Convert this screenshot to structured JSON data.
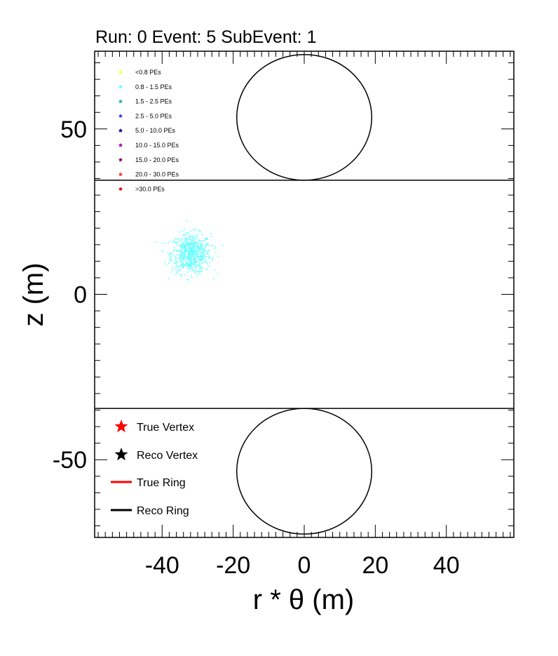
{
  "title": "Run: 0  Event: 5  SubEvent: 1",
  "chart_data": {
    "type": "scatter",
    "xlabel": "r * θ (m)",
    "ylabel": "z (m)",
    "xlim": [
      -59,
      59
    ],
    "ylim": [
      -73.5,
      73.5
    ],
    "x_ticks": [
      {
        "value": -40,
        "label": "-40"
      },
      {
        "value": -20,
        "label": "-20"
      },
      {
        "value": 0,
        "label": "0"
      },
      {
        "value": 20,
        "label": "20"
      },
      {
        "value": 40,
        "label": "40"
      }
    ],
    "y_ticks": [
      {
        "value": 50,
        "label": "50"
      },
      {
        "value": 0,
        "label": "0"
      },
      {
        "value": -50,
        "label": "-50"
      }
    ],
    "grid": false,
    "detector": {
      "barrel_top_z": 34.5,
      "barrel_bottom_z": -34.5,
      "cap_radius": 19,
      "top_cap_center": [
        0,
        53.5
      ],
      "bottom_cap_center": [
        0,
        -53.5
      ]
    },
    "hit_cluster": {
      "pe_bin": "0.8 - 1.5 PEs",
      "color": "#66ffff",
      "center": [
        -32,
        12.5
      ],
      "spread": [
        2.8,
        3.0
      ],
      "x_range": [
        -42,
        -23
      ],
      "y_range": [
        3.5,
        22.5
      ]
    },
    "pe_legend": [
      {
        "label": "<0.8 PEs",
        "color": "#ffff33"
      },
      {
        "label": "0.8 - 1.5 PEs",
        "color": "#66ffff"
      },
      {
        "label": "1.5 - 2.5 PEs",
        "color": "#20b2aa"
      },
      {
        "label": "2.5 - 5.0 PEs",
        "color": "#3333ff"
      },
      {
        "label": "5.0 - 10.0 PEs",
        "color": "#000099"
      },
      {
        "label": "10.0 - 15.0 PEs",
        "color": "#aa00aa"
      },
      {
        "label": "15.0 - 20.0 PEs",
        "color": "#800060"
      },
      {
        "label": "20.0 - 30.0 PEs",
        "color": "#ff3333"
      },
      {
        "label": ">30.0 PEs",
        "color": "#dd0000"
      }
    ],
    "key_legend": [
      {
        "label": "True Vertex",
        "marker": "star",
        "color": "#ff0000"
      },
      {
        "label": "Reco Vertex",
        "marker": "star",
        "color": "#000000"
      },
      {
        "label": "True Ring",
        "marker": "line",
        "color": "#ff0000"
      },
      {
        "label": "Reco Ring",
        "marker": "line",
        "color": "#000000"
      }
    ]
  }
}
